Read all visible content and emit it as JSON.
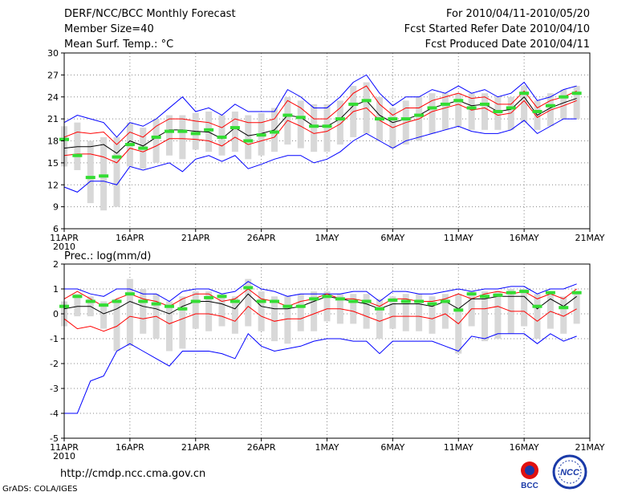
{
  "header": {
    "title": "DERF/NCC/BCC Monthly Forecast",
    "member_size": "Member Size=40",
    "variable": "Mean Surf. Temp.: °C",
    "forecast_period": "For 2010/04/11-2010/05/20",
    "start_date": "Fcst Started Refer Date 2010/04/10",
    "produced_date": "Fcst Produced Date 2010/04/11"
  },
  "footer": {
    "url": "http://cmdp.ncc.cma.gov.cn",
    "grads_credit": "GrADS: COLA/IGES",
    "logo_bcc_label": "BCC",
    "logo_ncc_label": "NCC"
  },
  "colors": {
    "range_line": "#0000ff",
    "spread_line": "#ff0000",
    "mean_line": "#000000",
    "median_marker": "#33dd33",
    "box": "#d8d8d8",
    "grid": "#888888"
  },
  "chart_data": [
    {
      "type": "line",
      "title": "Mean Surf. Temp.: °C",
      "ylim": [
        6,
        30
      ],
      "yticks": [
        6,
        9,
        12,
        15,
        18,
        21,
        24,
        27,
        30
      ],
      "xlim": [
        1,
        41
      ],
      "xticks": [
        {
          "day": 1,
          "label": "11APR",
          "sub": "2010"
        },
        {
          "day": 6,
          "label": "16APR"
        },
        {
          "day": 11,
          "label": "21APR"
        },
        {
          "day": 16,
          "label": "26APR"
        },
        {
          "day": 21,
          "label": "1MAY"
        },
        {
          "day": 26,
          "label": "6MAY"
        },
        {
          "day": 31,
          "label": "11MAY"
        },
        {
          "day": 36,
          "label": "16MAY"
        },
        {
          "day": 41,
          "label": "21MAY"
        }
      ],
      "days": [
        1,
        2,
        3,
        4,
        5,
        6,
        7,
        8,
        9,
        10,
        11,
        12,
        13,
        14,
        15,
        16,
        17,
        18,
        19,
        20,
        21,
        22,
        23,
        24,
        25,
        26,
        27,
        28,
        29,
        30,
        31,
        32,
        33,
        34,
        35,
        36,
        37,
        38,
        39,
        40
      ],
      "series": [
        {
          "name": "max",
          "values": [
            20.5,
            21.5,
            21.0,
            20.5,
            18.5,
            20.5,
            20.0,
            21.0,
            22.5,
            24.0,
            22.0,
            22.5,
            21.5,
            23.0,
            22.0,
            22.0,
            22.0,
            25.0,
            24.0,
            22.5,
            22.5,
            24.0,
            26.0,
            27.0,
            24.5,
            22.8,
            24.0,
            24.0,
            25.0,
            24.5,
            25.5,
            24.5,
            25.0,
            24.0,
            24.5,
            26.0,
            23.5,
            24.0,
            25.0,
            25.5
          ]
        },
        {
          "name": "upper",
          "values": [
            18.5,
            19.2,
            19.0,
            19.2,
            17.5,
            19.2,
            18.5,
            20.0,
            21.0,
            21.0,
            20.7,
            20.5,
            19.8,
            21.0,
            20.5,
            20.5,
            21.0,
            23.5,
            22.5,
            21.0,
            21.0,
            22.5,
            24.5,
            25.5,
            23.0,
            21.5,
            22.5,
            22.5,
            23.5,
            24.0,
            24.5,
            23.8,
            24.0,
            23.0,
            23.0,
            24.8,
            22.5,
            23.5,
            24.0,
            24.8
          ]
        },
        {
          "name": "mean",
          "values": [
            17.0,
            17.2,
            17.2,
            17.5,
            16.3,
            18.0,
            17.3,
            18.5,
            19.5,
            19.5,
            19.3,
            19.2,
            18.3,
            19.8,
            18.7,
            19.0,
            19.5,
            21.5,
            21.2,
            20.0,
            20.0,
            21.0,
            22.8,
            23.5,
            21.5,
            20.5,
            21.0,
            21.5,
            22.5,
            23.0,
            23.5,
            22.8,
            23.0,
            22.0,
            22.3,
            24.0,
            21.5,
            22.5,
            23.2,
            23.8
          ]
        },
        {
          "name": "lower",
          "values": [
            16.0,
            16.2,
            16.2,
            15.8,
            15.0,
            17.0,
            16.5,
            17.3,
            18.3,
            18.3,
            18.2,
            18.0,
            17.3,
            18.5,
            17.5,
            18.0,
            18.5,
            20.8,
            20.0,
            19.0,
            19.3,
            20.3,
            22.0,
            22.5,
            20.8,
            19.8,
            20.5,
            21.0,
            22.0,
            22.5,
            23.0,
            22.2,
            22.5,
            21.5,
            21.8,
            23.5,
            21.2,
            22.2,
            22.8,
            23.5
          ]
        },
        {
          "name": "min",
          "values": [
            11.7,
            11.0,
            12.5,
            12.5,
            12.0,
            14.5,
            14.0,
            14.5,
            15.0,
            13.8,
            15.5,
            16.0,
            15.2,
            16.0,
            14.2,
            14.8,
            15.5,
            16.0,
            16.0,
            15.0,
            15.5,
            16.5,
            18.0,
            19.0,
            18.0,
            17.0,
            18.0,
            18.5,
            19.0,
            19.5,
            20.0,
            19.3,
            19.0,
            19.0,
            19.5,
            20.8,
            19.0,
            20.0,
            21.0,
            21.0
          ]
        }
      ],
      "boxes": [
        {
          "low": 14.5,
          "high": 20.0,
          "median": 18.2
        },
        {
          "low": 14.0,
          "high": 20.5,
          "median": 16.0
        },
        {
          "low": 9.5,
          "high": 18.0,
          "median": 13.0
        },
        {
          "low": 8.5,
          "high": 18.5,
          "median": 13.2
        },
        {
          "low": 9.0,
          "high": 18.5,
          "median": 15.8
        },
        {
          "low": 14.5,
          "high": 20.5,
          "median": 17.5
        },
        {
          "low": 14.2,
          "high": 19.8,
          "median": 17.0
        },
        {
          "low": 15.0,
          "high": 21.0,
          "median": 18.5
        },
        {
          "low": 16.0,
          "high": 21.5,
          "median": 19.3
        },
        {
          "low": 15.5,
          "high": 21.5,
          "median": 19.3
        },
        {
          "low": 16.8,
          "high": 21.8,
          "median": 19.0
        },
        {
          "low": 16.5,
          "high": 22.0,
          "median": 19.5
        },
        {
          "low": 16.0,
          "high": 21.5,
          "median": 18.5
        },
        {
          "low": 16.5,
          "high": 22.0,
          "median": 19.8
        },
        {
          "low": 15.5,
          "high": 21.5,
          "median": 18.0
        },
        {
          "low": 16.0,
          "high": 21.8,
          "median": 18.8
        },
        {
          "low": 16.5,
          "high": 22.5,
          "median": 19.2
        },
        {
          "low": 17.5,
          "high": 24.0,
          "median": 21.5
        },
        {
          "low": 17.0,
          "high": 23.5,
          "median": 21.2
        },
        {
          "low": 16.5,
          "high": 23.0,
          "median": 20.0
        },
        {
          "low": 16.5,
          "high": 23.0,
          "median": 20.0
        },
        {
          "low": 17.5,
          "high": 23.5,
          "median": 21.0
        },
        {
          "low": 18.5,
          "high": 25.5,
          "median": 23.0
        },
        {
          "low": 19.0,
          "high": 26.0,
          "median": 23.5
        },
        {
          "low": 18.0,
          "high": 24.0,
          "median": 21.0
        },
        {
          "low": 17.0,
          "high": 22.5,
          "median": 21.0
        },
        {
          "low": 17.5,
          "high": 23.5,
          "median": 21.0
        },
        {
          "low": 18.0,
          "high": 24.0,
          "median": 21.5
        },
        {
          "low": 19.0,
          "high": 24.5,
          "median": 22.5
        },
        {
          "low": 19.5,
          "high": 24.5,
          "median": 23.0
        },
        {
          "low": 20.0,
          "high": 24.5,
          "median": 23.5
        },
        {
          "low": 19.5,
          "high": 24.5,
          "median": 22.5
        },
        {
          "low": 19.5,
          "high": 24.5,
          "median": 23.0
        },
        {
          "low": 19.5,
          "high": 24.0,
          "median": 22.0
        },
        {
          "low": 19.5,
          "high": 24.0,
          "median": 22.5
        },
        {
          "low": 20.5,
          "high": 25.5,
          "median": 24.5
        },
        {
          "low": 19.5,
          "high": 23.5,
          "median": 22.0
        },
        {
          "low": 20.0,
          "high": 24.5,
          "median": 22.8
        },
        {
          "low": 21.0,
          "high": 25.0,
          "median": 24.0
        },
        {
          "low": 21.0,
          "high": 25.5,
          "median": 24.5
        }
      ]
    },
    {
      "type": "line",
      "title": "Prec.: log(mm/d)",
      "ylim": [
        -5,
        2
      ],
      "yticks": [
        -5,
        -4,
        -3,
        -2,
        -1,
        0,
        1,
        2
      ],
      "xlim": [
        1,
        41
      ],
      "xticks": [
        {
          "day": 1,
          "label": "11APR",
          "sub": "2010"
        },
        {
          "day": 6,
          "label": "16APR"
        },
        {
          "day": 11,
          "label": "21APR"
        },
        {
          "day": 16,
          "label": "26APR"
        },
        {
          "day": 21,
          "label": "1MAY"
        },
        {
          "day": 26,
          "label": "6MAY"
        },
        {
          "day": 31,
          "label": "11MAY"
        },
        {
          "day": 36,
          "label": "16MAY"
        },
        {
          "day": 41,
          "label": "21MAY"
        }
      ],
      "days": [
        1,
        2,
        3,
        4,
        5,
        6,
        7,
        8,
        9,
        10,
        11,
        12,
        13,
        14,
        15,
        16,
        17,
        18,
        19,
        20,
        21,
        22,
        23,
        24,
        25,
        26,
        27,
        28,
        29,
        30,
        31,
        32,
        33,
        34,
        35,
        36,
        37,
        38,
        39,
        40
      ],
      "series": [
        {
          "name": "max",
          "values": [
            1.0,
            1.0,
            0.8,
            0.7,
            1.0,
            1.0,
            0.8,
            0.8,
            0.5,
            0.9,
            1.0,
            1.0,
            0.8,
            0.9,
            1.3,
            1.0,
            0.9,
            0.7,
            0.8,
            0.8,
            0.8,
            0.8,
            0.9,
            0.9,
            0.5,
            0.9,
            0.9,
            0.8,
            0.8,
            0.9,
            1.0,
            0.9,
            1.0,
            1.0,
            1.1,
            1.1,
            0.8,
            1.0,
            1.0,
            1.2
          ]
        },
        {
          "name": "upper",
          "values": [
            0.6,
            0.9,
            0.6,
            0.3,
            0.6,
            0.8,
            0.6,
            0.5,
            0.3,
            0.6,
            0.8,
            0.8,
            0.5,
            0.6,
            1.0,
            0.6,
            0.5,
            0.3,
            0.5,
            0.6,
            0.8,
            0.6,
            0.6,
            0.5,
            0.3,
            0.6,
            0.6,
            0.5,
            0.5,
            0.6,
            0.8,
            0.6,
            0.8,
            0.9,
            0.8,
            0.9,
            0.6,
            0.8,
            0.6,
            1.0
          ]
        },
        {
          "name": "mean",
          "values": [
            0.2,
            0.3,
            0.3,
            0.0,
            0.2,
            0.5,
            0.3,
            0.2,
            0.0,
            0.3,
            0.5,
            0.5,
            0.4,
            0.2,
            0.8,
            0.3,
            0.2,
            0.2,
            0.3,
            0.5,
            0.7,
            0.6,
            0.5,
            0.4,
            0.2,
            0.4,
            0.4,
            0.4,
            0.3,
            0.5,
            0.2,
            0.6,
            0.6,
            0.7,
            0.7,
            0.7,
            0.2,
            0.6,
            0.3,
            0.7
          ]
        },
        {
          "name": "lower",
          "values": [
            -0.2,
            -0.6,
            -0.5,
            -0.7,
            -0.5,
            -0.1,
            -0.2,
            -0.1,
            -0.4,
            -0.2,
            0.0,
            0.0,
            -0.1,
            -0.3,
            0.3,
            -0.1,
            -0.3,
            -0.2,
            -0.2,
            0.0,
            0.2,
            0.2,
            0.1,
            -0.1,
            -0.3,
            -0.1,
            -0.1,
            -0.1,
            -0.2,
            0.0,
            -0.4,
            0.2,
            0.2,
            0.3,
            0.1,
            0.1,
            -0.3,
            0.1,
            -0.1,
            0.2
          ]
        },
        {
          "name": "min",
          "values": [
            -4.0,
            -4.0,
            -2.7,
            -2.5,
            -1.5,
            -1.2,
            -1.5,
            -1.8,
            -2.1,
            -1.5,
            -1.5,
            -1.5,
            -1.6,
            -1.8,
            -0.8,
            -1.3,
            -1.5,
            -1.4,
            -1.3,
            -1.1,
            -1.0,
            -1.0,
            -1.1,
            -1.1,
            -1.6,
            -1.1,
            -1.1,
            -1.1,
            -1.1,
            -1.3,
            -1.5,
            -0.9,
            -1.0,
            -0.8,
            -0.8,
            -0.8,
            -1.2,
            -0.8,
            -1.1,
            -0.9
          ]
        }
      ],
      "boxes": [
        {
          "low": -0.5,
          "high": 0.5,
          "median": 0.3
        },
        {
          "low": -0.1,
          "high": 0.8,
          "median": 0.7
        },
        {
          "low": -0.1,
          "high": 0.7,
          "median": 0.5
        },
        {
          "low": -0.6,
          "high": 0.5,
          "median": 0.35
        },
        {
          "low": -1.5,
          "high": 0.6,
          "median": 0.5
        },
        {
          "low": -1.3,
          "high": 1.4,
          "median": 0.8
        },
        {
          "low": -0.8,
          "high": 1.0,
          "median": 0.5
        },
        {
          "low": -1.0,
          "high": 0.8,
          "median": 0.4
        },
        {
          "low": -1.5,
          "high": 0.5,
          "median": 0.3
        },
        {
          "low": -1.4,
          "high": 0.7,
          "median": 0.2
        },
        {
          "low": -0.6,
          "high": 0.9,
          "median": 0.5
        },
        {
          "low": -0.7,
          "high": 0.9,
          "median": 0.65
        },
        {
          "low": -0.5,
          "high": 0.8,
          "median": 0.7
        },
        {
          "low": -0.8,
          "high": 0.7,
          "median": 0.5
        },
        {
          "low": -0.5,
          "high": 1.4,
          "median": 1.05
        },
        {
          "low": -0.7,
          "high": 0.9,
          "median": 0.5
        },
        {
          "low": -1.1,
          "high": 0.7,
          "median": 0.5
        },
        {
          "low": -1.2,
          "high": 0.7,
          "median": 0.3
        },
        {
          "low": -0.7,
          "high": 0.8,
          "median": 0.3
        },
        {
          "low": -0.7,
          "high": 0.9,
          "median": 0.6
        },
        {
          "low": -0.3,
          "high": 0.9,
          "median": 0.7
        },
        {
          "low": -0.4,
          "high": 0.8,
          "median": 0.6
        },
        {
          "low": -0.4,
          "high": 0.8,
          "median": 0.5
        },
        {
          "low": -0.6,
          "high": 0.8,
          "median": 0.5
        },
        {
          "low": -1.0,
          "high": 0.6,
          "median": 0.2
        },
        {
          "low": -0.6,
          "high": 0.7,
          "median": 0.55
        },
        {
          "low": -0.7,
          "high": 0.8,
          "median": 0.5
        },
        {
          "low": -0.7,
          "high": 0.8,
          "median": 0.5
        },
        {
          "low": -0.8,
          "high": 0.7,
          "median": 0.4
        },
        {
          "low": -0.6,
          "high": 0.8,
          "median": 0.5
        },
        {
          "low": -1.6,
          "high": 0.8,
          "median": 0.15
        },
        {
          "low": -0.5,
          "high": 0.9,
          "median": 0.8
        },
        {
          "low": -1.1,
          "high": 0.9,
          "median": 0.7
        },
        {
          "low": -1.0,
          "high": 0.9,
          "median": 0.75
        },
        {
          "low": -0.8,
          "high": 1.0,
          "median": 0.85
        },
        {
          "low": -0.5,
          "high": 1.0,
          "median": 0.9
        },
        {
          "low": -1.0,
          "high": 0.8,
          "median": 0.3
        },
        {
          "low": -0.6,
          "high": 0.9,
          "median": 0.85
        },
        {
          "low": -0.8,
          "high": 0.7,
          "median": 0.25
        },
        {
          "low": -0.4,
          "high": 0.9,
          "median": 0.85
        }
      ]
    }
  ]
}
